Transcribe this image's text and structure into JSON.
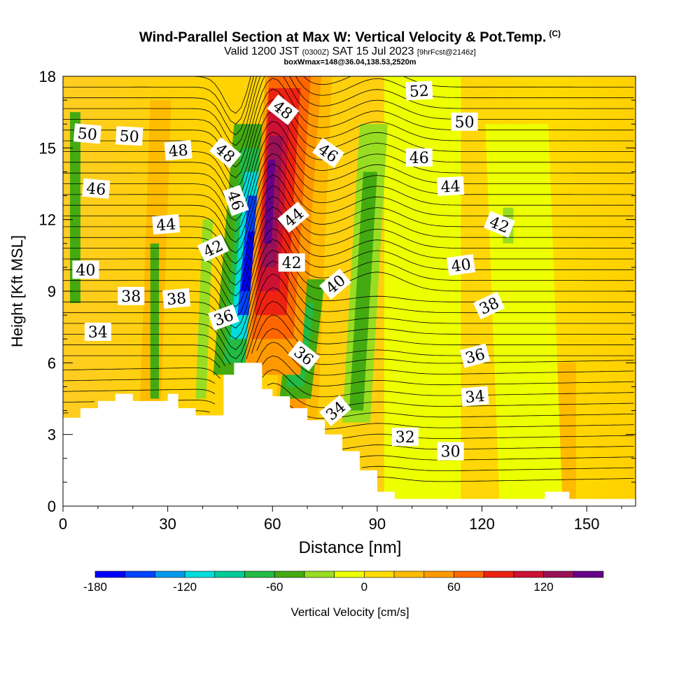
{
  "header": {
    "title": "Wind-Parallel Section at Max W: Vertical Velocity & Pot.Temp.",
    "copyright": "(C)",
    "valid_main": "Valid 1200 JST",
    "valid_utc": "(0300Z)",
    "valid_date": "SAT 15 Jul 2023",
    "forecast_tag": "[9hrFcst@2146z]",
    "box_info": "boxWmax=148@36.04,138.53,2520m"
  },
  "chart_data": {
    "type": "heatmap",
    "xlabel": "Distance [nm]",
    "ylabel": "Height [Kft MSL]",
    "xlim": [
      0,
      164
    ],
    "ylim": [
      0,
      18
    ],
    "x_ticks": [
      0,
      30,
      60,
      90,
      120,
      150
    ],
    "y_ticks": [
      0,
      3,
      6,
      9,
      12,
      15,
      18
    ],
    "grid": false,
    "colorbar": {
      "label": "Vertical Velocity [cm/s]",
      "tick_labels": [
        -180,
        -120,
        -60,
        0,
        60,
        120
      ],
      "colors": [
        "#0000ff",
        "#0044ff",
        "#0099ee",
        "#00dddd",
        "#00cc99",
        "#22bb44",
        "#44aa11",
        "#99dd22",
        "#eeff00",
        "#ffdd00",
        "#ffbb00",
        "#ff9900",
        "#ff6600",
        "#ee2211",
        "#cc1133",
        "#991155",
        "#660088"
      ],
      "bounds": [
        -180,
        -160,
        -140,
        -120,
        -100,
        -80,
        -60,
        -40,
        -20,
        0,
        20,
        40,
        60,
        80,
        100,
        120,
        140,
        160
      ]
    },
    "terrain": [
      [
        0,
        3.7
      ],
      [
        5,
        4.1
      ],
      [
        10,
        4.4
      ],
      [
        15,
        4.7
      ],
      [
        20,
        4.4
      ],
      [
        30,
        4.7
      ],
      [
        33,
        4.1
      ],
      [
        38,
        3.8
      ],
      [
        43,
        3.8
      ],
      [
        46,
        5.5
      ],
      [
        49,
        6.0
      ],
      [
        55,
        6.0
      ],
      [
        57,
        4.9
      ],
      [
        60,
        4.6
      ],
      [
        65,
        4.1
      ],
      [
        70,
        3.6
      ],
      [
        75,
        3.0
      ],
      [
        80,
        2.3
      ],
      [
        85,
        1.5
      ],
      [
        90,
        0.6
      ],
      [
        95,
        0.3
      ],
      [
        135,
        0.3
      ],
      [
        138,
        0.6
      ],
      [
        142,
        0.6
      ],
      [
        145,
        0.3
      ],
      [
        164,
        0.3
      ]
    ],
    "velocity_features": [
      {
        "x": 52,
        "y": 10,
        "w_cm_s": -175
      },
      {
        "x": 57,
        "y": 13.5,
        "w_cm_s": 148
      },
      {
        "x": 66,
        "y": 6,
        "w_cm_s": -60
      },
      {
        "x": 84,
        "y": 12,
        "w_cm_s": -40
      },
      {
        "x": 3,
        "y": 13,
        "w_cm_s": -40
      }
    ],
    "isentrope_labels": [
      {
        "text": "52",
        "x": 102,
        "y": 17.4,
        "angle": -3
      },
      {
        "text": "50",
        "x": 7,
        "y": 15.6,
        "angle": 5
      },
      {
        "text": "50",
        "x": 19,
        "y": 15.5,
        "angle": 3
      },
      {
        "text": "50",
        "x": 115,
        "y": 16.1,
        "angle": 0
      },
      {
        "text": "48",
        "x": 63,
        "y": 16.6,
        "angle": 38
      },
      {
        "text": "48",
        "x": 33,
        "y": 14.9,
        "angle": -5
      },
      {
        "text": "48",
        "x": 46.5,
        "y": 14.8,
        "angle": 40
      },
      {
        "text": "46",
        "x": 76,
        "y": 14.8,
        "angle": 35
      },
      {
        "text": "46",
        "x": 102,
        "y": 14.6,
        "angle": 0
      },
      {
        "text": "46",
        "x": 9.5,
        "y": 13.3,
        "angle": 5
      },
      {
        "text": "46",
        "x": 49.5,
        "y": 12.8,
        "angle": 70
      },
      {
        "text": "44",
        "x": 111,
        "y": 13.4,
        "angle": -3
      },
      {
        "text": "44",
        "x": 66,
        "y": 12.1,
        "angle": -40
      },
      {
        "text": "44",
        "x": 29.5,
        "y": 11.8,
        "angle": -5
      },
      {
        "text": "42",
        "x": 125,
        "y": 11.8,
        "angle": 22
      },
      {
        "text": "42",
        "x": 43,
        "y": 10.8,
        "angle": -25
      },
      {
        "text": "42",
        "x": 65.5,
        "y": 10.2,
        "angle": 0
      },
      {
        "text": "40",
        "x": 114,
        "y": 10.1,
        "angle": -8
      },
      {
        "text": "40",
        "x": 6.5,
        "y": 9.9,
        "angle": 0
      },
      {
        "text": "40",
        "x": 78,
        "y": 9.3,
        "angle": -40
      },
      {
        "text": "38",
        "x": 19.5,
        "y": 8.8,
        "angle": 0
      },
      {
        "text": "38",
        "x": 32.5,
        "y": 8.7,
        "angle": -5
      },
      {
        "text": "38",
        "x": 122,
        "y": 8.4,
        "angle": -25
      },
      {
        "text": "36",
        "x": 46,
        "y": 7.9,
        "angle": -20
      },
      {
        "text": "36",
        "x": 69,
        "y": 6.3,
        "angle": 38
      },
      {
        "text": "36",
        "x": 118,
        "y": 6.3,
        "angle": -15
      },
      {
        "text": "34",
        "x": 10,
        "y": 7.3,
        "angle": 0
      },
      {
        "text": "34",
        "x": 118,
        "y": 4.6,
        "angle": -5
      },
      {
        "text": "34",
        "x": 78,
        "y": 4.0,
        "angle": -40
      },
      {
        "text": "32",
        "x": 98,
        "y": 2.9,
        "angle": 0
      },
      {
        "text": "30",
        "x": 111,
        "y": 2.3,
        "angle": 0
      }
    ]
  }
}
